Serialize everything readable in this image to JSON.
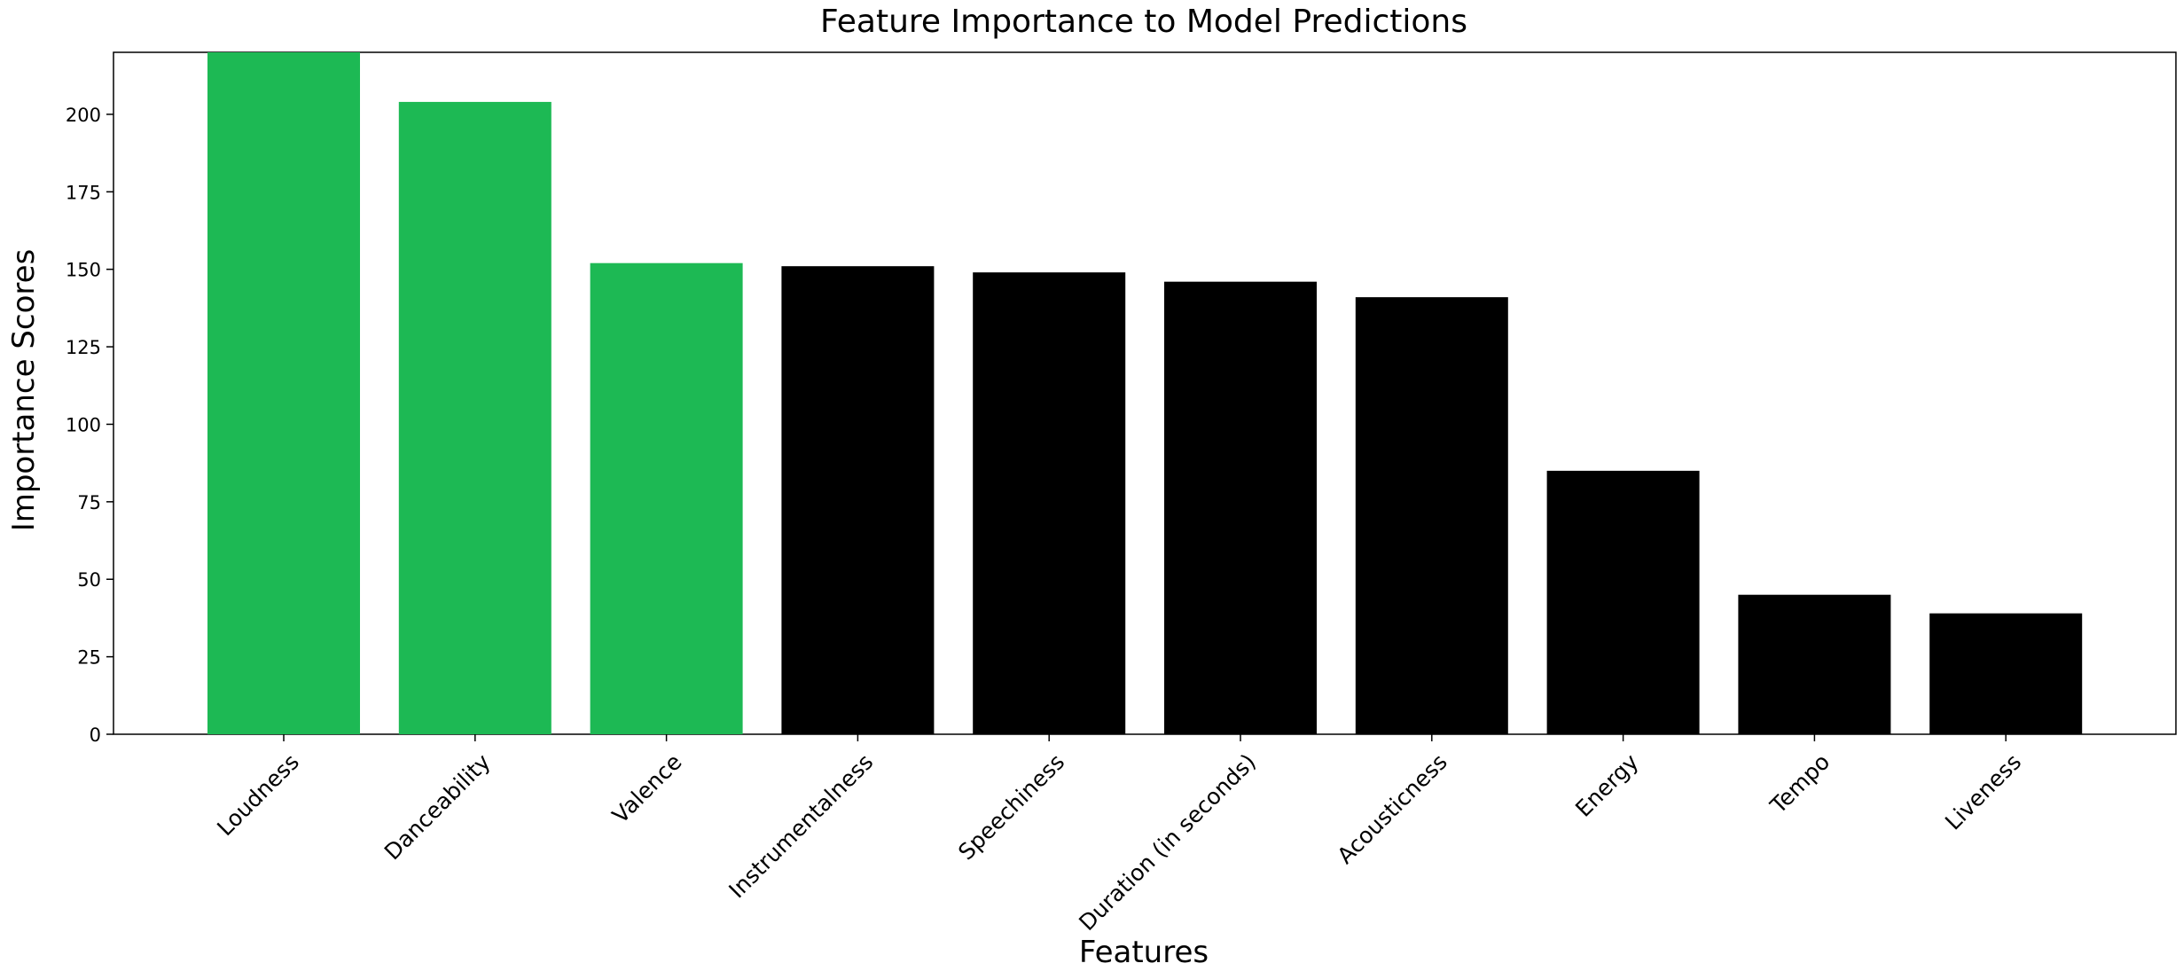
{
  "chart_data": {
    "type": "bar",
    "title": "Feature Importance to Model Predictions",
    "xlabel": "Features",
    "ylabel": "Importance Scores",
    "categories": [
      "Loudness",
      "Danceability",
      "Valence",
      "Instrumentalness",
      "Speechiness",
      "Duration (in seconds)",
      "Acousticness",
      "Energy",
      "Tempo",
      "Liveness"
    ],
    "values": [
      220,
      204,
      152,
      151,
      149,
      146,
      141,
      85,
      45,
      39
    ],
    "highlight_count": 3,
    "colors": {
      "highlight": "#1db954",
      "default": "#000000"
    },
    "ylim": [
      0,
      220
    ],
    "yticks": [
      0,
      25,
      50,
      75,
      100,
      125,
      150,
      175,
      200
    ],
    "grid": false,
    "legend": "none"
  }
}
